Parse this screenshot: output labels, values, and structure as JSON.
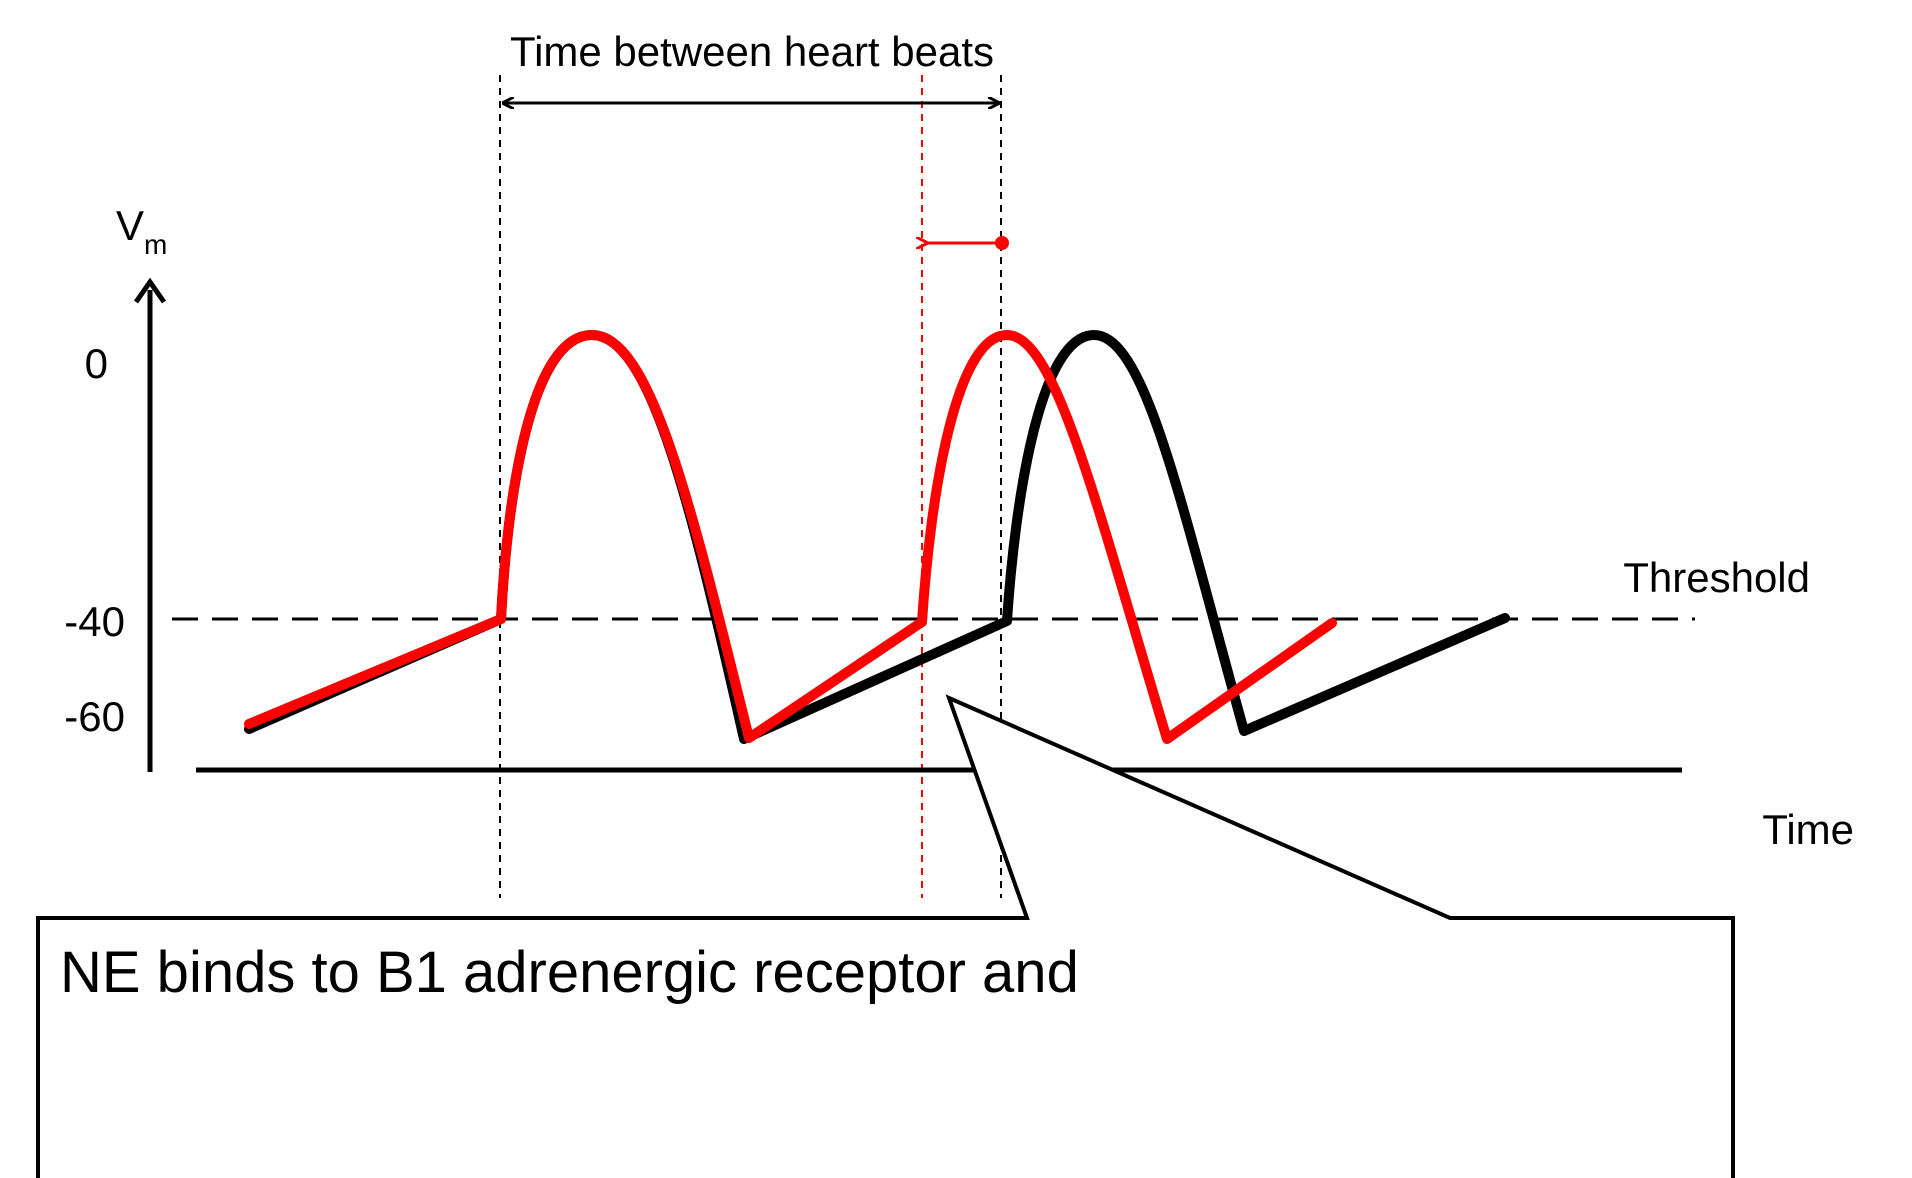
{
  "title": "Time between heart beats",
  "y_axis": {
    "label_main": "V",
    "label_sub": "m",
    "ticks": [
      "0",
      "-40",
      "-60"
    ]
  },
  "x_axis": {
    "label": "Time"
  },
  "threshold_label": "Threshold",
  "callout": {
    "text": "NE binds to B1 adrenergic receptor and"
  },
  "colors": {
    "baseline_trace": "#000000",
    "ne_trace": "#ff0000",
    "guides": "#000000",
    "ne_guide": "#ff0000",
    "background": "#ffffff"
  },
  "traces": [
    {
      "id": "baseline",
      "color": "black",
      "description_in_image": false
    },
    {
      "id": "with-norepinephrine",
      "color": "red",
      "description_in_image": false
    }
  ],
  "annotations": {
    "interval_arrow": "double-headed, black, spans between dashed guides",
    "shift_arrow": "red, points left from the original beat onset to the earlier onset"
  }
}
